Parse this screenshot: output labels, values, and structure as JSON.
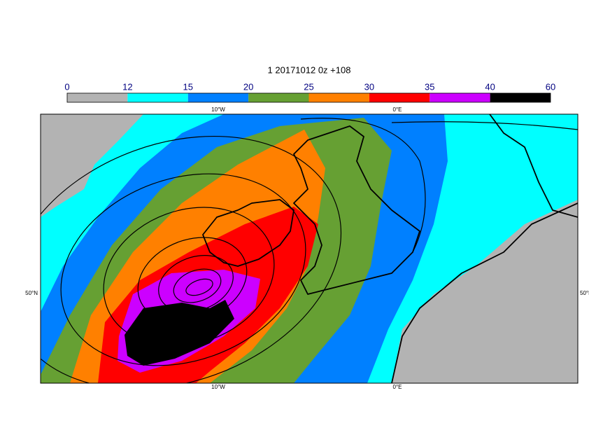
{
  "title": "1 20171012 0z +108",
  "colorbar": {
    "ticks": [
      0,
      12,
      15,
      20,
      25,
      30,
      35,
      40,
      60
    ],
    "colors": [
      "#b3b3b3",
      "#00ffff",
      "#0080ff",
      "#66a033",
      "#ff8000",
      "#ff0000",
      "#cc00ff",
      "#000000"
    ]
  },
  "axis_labels": {
    "top": [
      "10°W",
      "0°E"
    ],
    "bottom": [
      "10°W",
      "0°E"
    ],
    "left": "50°N",
    "right": "50°N"
  }
}
